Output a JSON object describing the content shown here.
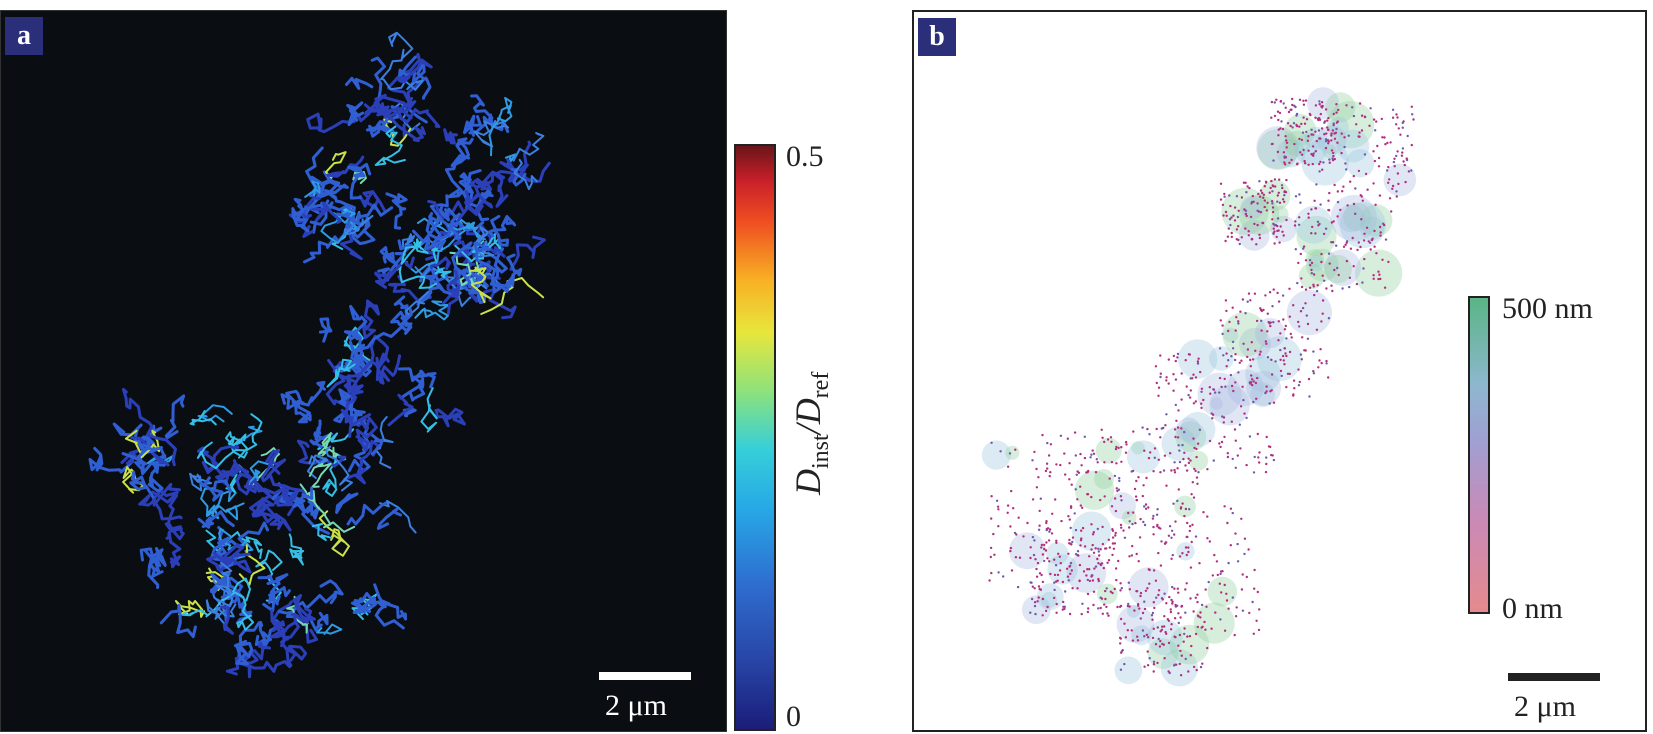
{
  "panel_a": {
    "tag": "a",
    "scale_label": "2 μm",
    "colorbar": {
      "max_label": "0.5",
      "min_label": "0",
      "title_main": "D",
      "title_sub": "inst",
      "title_sep": "/D",
      "title_sub2": "ref",
      "colors": [
        "#1b1d79",
        "#2e6ed0",
        "#36cfd9",
        "#8ee27a",
        "#e7e63d",
        "#ef4e21",
        "#6b1419"
      ]
    }
  },
  "panel_b": {
    "tag": "b",
    "scale_label": "2 μm",
    "colorbar": {
      "max_label": "500 nm",
      "min_label": "0 nm",
      "colors": [
        "#e58a8e",
        "#9fa0d2",
        "#5ab586"
      ]
    }
  }
}
